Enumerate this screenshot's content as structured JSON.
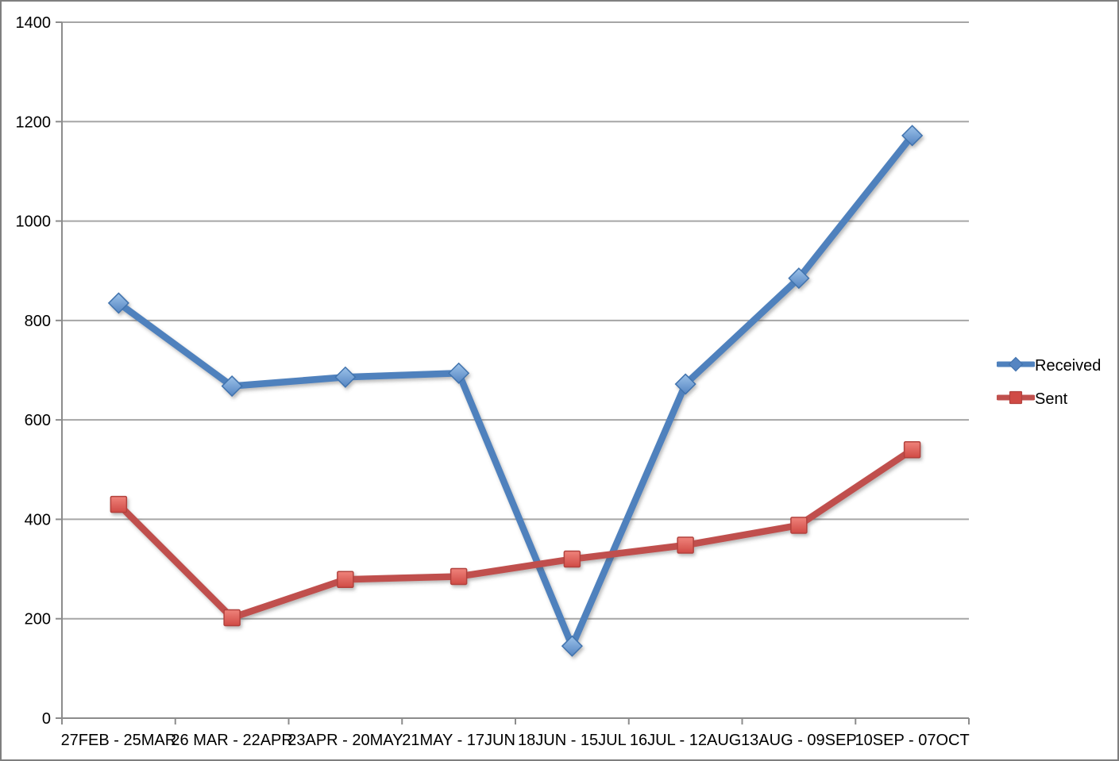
{
  "chart_data": {
    "type": "line",
    "title": "",
    "xlabel": "",
    "ylabel": "",
    "categories": [
      "27FEB - 25MAR",
      "26 MAR - 22APR",
      "23APR - 20MAY",
      "21MAY - 17JUN",
      "18JUN - 15JUL",
      "16JUL - 12AUG",
      "13AUG - 09SEP",
      "10SEP - 07OCT"
    ],
    "series": [
      {
        "name": "Received",
        "marker": "diamond",
        "color": "#4F81BD",
        "marker_fill_top": "#9CC2E9",
        "marker_fill_bottom": "#5585C2",
        "marker_stroke": "#4173AE",
        "values": [
          835,
          668,
          686,
          694,
          145,
          672,
          885,
          1172
        ]
      },
      {
        "name": "Sent",
        "marker": "square",
        "color": "#C0504D",
        "marker_fill_top": "#EF837B",
        "marker_fill_bottom": "#D04A45",
        "marker_stroke": "#B2423E",
        "values": [
          430,
          202,
          279,
          285,
          320,
          348,
          388,
          540
        ]
      }
    ],
    "ylim": [
      0,
      1400
    ],
    "ytick_step": 200,
    "ytick_labels": [
      "0",
      "200",
      "400",
      "600",
      "800",
      "1000",
      "1200",
      "1400"
    ],
    "grid": "horizontal",
    "legend_position": "right",
    "grid_color": "#A6A6A6",
    "axis_color": "#8C8C8C",
    "text_color": "#000000",
    "line_width": 8.5
  }
}
